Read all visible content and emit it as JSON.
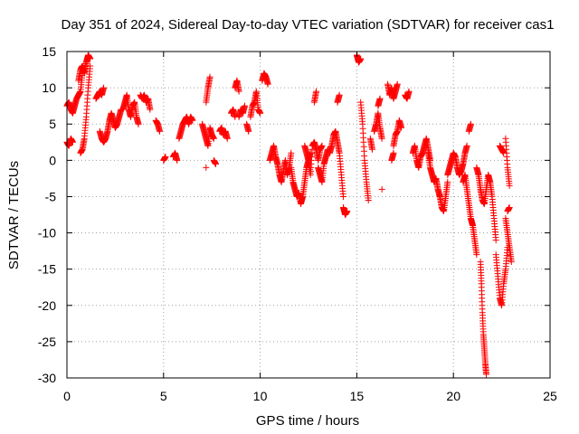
{
  "chart_data": {
    "type": "scatter",
    "title": "Day 351 of 2024, Sidereal Day-to-day VTEC variation (SDTVAR) for receiver cas1",
    "xlabel": "GPS time / hours",
    "ylabel": "SDTVAR / TECUs",
    "xlim": [
      0,
      25
    ],
    "ylim": [
      -30,
      15
    ],
    "xticks": [
      0,
      5,
      10,
      15,
      20,
      25
    ],
    "yticks": [
      -30,
      -25,
      -20,
      -15,
      -10,
      -5,
      0,
      5,
      10,
      15
    ],
    "grid": true,
    "marker": "+",
    "colors": {
      "series": "#ff0000"
    },
    "series": [
      {
        "name": "SDTVAR",
        "segments": [
          {
            "x": [
              0.0,
              0.1,
              0.2,
              0.3,
              0.4,
              0.5,
              0.6,
              0.7,
              0.8
            ],
            "y": [
              7.5,
              8,
              7,
              6.5,
              7.5,
              8.5,
              9,
              9.5,
              12
            ]
          },
          {
            "x": [
              0.0,
              0.1,
              0.2,
              0.3
            ],
            "y": [
              2.5,
              2,
              3,
              2.5
            ]
          },
          {
            "x": [
              0.7,
              0.8,
              0.9,
              1.0,
              1.1,
              1.2
            ],
            "y": [
              1,
              1.5,
              3,
              6,
              10,
              13
            ]
          },
          {
            "x": [
              0.6,
              0.7,
              0.8,
              0.9,
              1.0,
              1.1,
              1.2
            ],
            "y": [
              11,
              12.5,
              13,
              12,
              13.5,
              14.5,
              14
            ]
          },
          {
            "x": [
              1.5,
              1.6,
              1.7,
              1.8,
              1.9
            ],
            "y": [
              8.5,
              9,
              9.5,
              9,
              10
            ]
          },
          {
            "x": [
              1.7,
              1.8,
              1.9,
              2.0,
              2.1,
              2.2,
              2.3,
              2.4,
              2.5,
              2.6,
              2.7,
              2.8
            ],
            "y": [
              4,
              3,
              2.5,
              3,
              4,
              5.5,
              6.5,
              5.5,
              4.5,
              5,
              6,
              7
            ]
          },
          {
            "x": [
              2.9,
              3.0,
              3.1,
              3.2,
              3.3,
              3.4,
              3.5,
              3.6,
              3.7
            ],
            "y": [
              7,
              8,
              9,
              7,
              6,
              7.5,
              8,
              6,
              5
            ]
          },
          {
            "x": [
              3.8,
              3.9,
              4.0,
              4.1,
              4.2,
              4.3
            ],
            "y": [
              9,
              8.5,
              9,
              8,
              8.5,
              7
            ]
          },
          {
            "x": [
              4.6,
              4.7,
              4.8
            ],
            "y": [
              5.5,
              5,
              4
            ]
          },
          {
            "x": [
              5.0,
              5.1
            ],
            "y": [
              0,
              0.5
            ]
          },
          {
            "x": [
              5.5,
              5.6,
              5.7
            ],
            "y": [
              0.5,
              1,
              0
            ]
          },
          {
            "x": [
              5.8,
              5.9,
              6.0,
              6.1,
              6.2,
              6.3,
              6.4,
              6.5
            ],
            "y": [
              3,
              4,
              5,
              5.5,
              6,
              5,
              6,
              5.5
            ]
          },
          {
            "x": [
              7.0,
              7.1,
              7.2,
              7.3,
              7.4,
              7.5,
              7.6
            ],
            "y": [
              5,
              4,
              3,
              2,
              4.5,
              3.5,
              3
            ]
          },
          {
            "x": [
              7.2,
              7.3,
              7.4
            ],
            "y": [
              8,
              10,
              11.5
            ]
          },
          {
            "x": [
              7.2
            ],
            "y": [
              -1
            ]
          },
          {
            "x": [
              7.6,
              7.7
            ],
            "y": [
              0,
              -0.5
            ]
          },
          {
            "x": [
              7.9,
              8.0,
              8.1,
              8.2,
              8.3
            ],
            "y": [
              4,
              4.5,
              3.5,
              4,
              3
            ]
          },
          {
            "x": [
              8.5,
              8.6,
              8.7
            ],
            "y": [
              6.5,
              7,
              6
            ]
          },
          {
            "x": [
              8.7,
              8.8,
              8.9
            ],
            "y": [
              10,
              11,
              9.5
            ]
          },
          {
            "x": [
              8.9,
              9.0,
              9.1,
              9.2
            ],
            "y": [
              6,
              7,
              6.5,
              7.5
            ]
          },
          {
            "x": [
              9.3,
              9.4
            ],
            "y": [
              5,
              4
            ]
          },
          {
            "x": [
              9.5,
              9.6,
              9.7,
              9.8,
              9.9,
              10.0
            ],
            "y": [
              6,
              7.5,
              8,
              9.5,
              7,
              6.5
            ]
          },
          {
            "x": [
              10.1,
              10.2,
              10.3,
              10.4
            ],
            "y": [
              11,
              12,
              11.5,
              10.5
            ]
          },
          {
            "x": [
              10.5,
              10.6,
              10.7,
              10.8,
              10.9,
              11.0,
              11.1,
              11.2,
              11.3,
              11.4,
              11.5,
              11.6
            ],
            "y": [
              0,
              1,
              2,
              0.5,
              -0.5,
              -2,
              -3,
              -1.5,
              0,
              -2,
              -1,
              1
            ]
          },
          {
            "x": [
              11.6,
              11.7,
              11.8,
              11.9,
              12.0,
              12.1,
              12.2,
              12.3,
              12.4,
              12.5,
              12.6
            ],
            "y": [
              -1,
              -3,
              -4,
              -5,
              -4.5,
              -6,
              -5,
              -3,
              -1,
              0,
              1
            ]
          },
          {
            "x": [
              12.3,
              12.4,
              12.5,
              12.6,
              12.7,
              12.8,
              12.9,
              13.0,
              13.1,
              13.2
            ],
            "y": [
              2,
              1,
              0,
              -2,
              2,
              2.5,
              1.5,
              0,
              1.5,
              2
            ]
          },
          {
            "x": [
              12.8,
              12.9
            ],
            "y": [
              8,
              9.5
            ]
          },
          {
            "x": [
              13.0,
              13.1,
              13.2,
              13.3,
              13.4,
              13.5
            ],
            "y": [
              -1,
              -2,
              -3,
              -0.5,
              0.5,
              1.5
            ]
          },
          {
            "x": [
              13.6,
              13.7,
              13.8,
              13.9,
              14.0,
              14.1,
              14.2,
              14.3
            ],
            "y": [
              1,
              2,
              3.5,
              4,
              2.5,
              1,
              -2,
              -5
            ]
          },
          {
            "x": [
              14.3,
              14.4,
              14.5
            ],
            "y": [
              -6.5,
              -7.5,
              -7
            ]
          },
          {
            "x": [
              14.0,
              14.1
            ],
            "y": [
              8,
              9
            ]
          },
          {
            "x": [
              15.0,
              15.1,
              15.2
            ],
            "y": [
              14.5,
              13.5,
              14
            ]
          },
          {
            "x": [
              15.2,
              15.3,
              15.4,
              15.5,
              15.6
            ],
            "y": [
              8,
              5,
              0,
              -3,
              -5.5
            ]
          },
          {
            "x": [
              15.7,
              15.8
            ],
            "y": [
              3,
              1.5
            ]
          },
          {
            "x": [
              15.9,
              16.0,
              16.1,
              16.2,
              16.3
            ],
            "y": [
              4,
              5,
              6.5,
              4.5,
              3
            ]
          },
          {
            "x": [
              16.1,
              16.2
            ],
            "y": [
              7.5,
              8.5
            ]
          },
          {
            "x": [
              16.3
            ],
            "y": [
              -4
            ]
          },
          {
            "x": [
              16.6,
              16.7,
              16.8,
              16.9,
              17.0,
              17.1
            ],
            "y": [
              10.5,
              9,
              10,
              8.5,
              9.5,
              10.5
            ]
          },
          {
            "x": [
              16.9,
              17.0,
              17.1,
              17.2,
              17.3
            ],
            "y": [
              2,
              3.5,
              4,
              5.5,
              4.5
            ]
          },
          {
            "x": [
              16.8,
              16.9
            ],
            "y": [
              0,
              1
            ]
          },
          {
            "x": [
              17.5,
              17.6,
              17.7
            ],
            "y": [
              9,
              8.5,
              9.5
            ]
          },
          {
            "x": [
              17.9,
              18.0,
              18.1,
              18.2,
              18.3,
              18.4,
              18.5,
              18.6,
              18.7,
              18.8
            ],
            "y": [
              1,
              2,
              0,
              -1,
              0.5,
              1,
              2,
              3,
              1.5,
              0
            ]
          },
          {
            "x": [
              18.7,
              18.8,
              18.9,
              19.0,
              19.1,
              19.2,
              19.3,
              19.4,
              19.5,
              19.6,
              19.7
            ],
            "y": [
              1,
              -1,
              -2,
              -3,
              -2.5,
              -4,
              -5,
              -6.5,
              -7,
              -5,
              -3
            ]
          },
          {
            "x": [
              19.7,
              19.8,
              19.9,
              20.0,
              20.1,
              20.2,
              20.3,
              20.4,
              20.5,
              20.6,
              20.7
            ],
            "y": [
              -2,
              -1,
              0,
              1,
              0.5,
              -1,
              -2,
              -1.5,
              -0.5,
              1,
              2
            ]
          },
          {
            "x": [
              20.5,
              20.6,
              20.7,
              20.8,
              20.9,
              21.0,
              21.1,
              21.2
            ],
            "y": [
              -3,
              -2,
              -4,
              -6,
              -8,
              -9,
              -11,
              -13
            ]
          },
          {
            "x": [
              20.8,
              20.9
            ],
            "y": [
              4,
              5
            ]
          },
          {
            "x": [
              21.2,
              21.3,
              21.4,
              21.5,
              21.6,
              21.7,
              21.8,
              21.9,
              22.0,
              22.1,
              22.2
            ],
            "y": [
              -1,
              -2,
              -4,
              -5.5,
              -6,
              -4,
              -2,
              -3,
              -5,
              -8,
              -11
            ]
          },
          {
            "x": [
              21.4,
              21.45,
              21.5,
              21.55,
              21.6,
              21.65,
              21.7
            ],
            "y": [
              -14,
              -17,
              -21,
              -24,
              -26,
              -28,
              -29.5
            ]
          },
          {
            "x": [
              22.2,
              22.3,
              22.4,
              22.5,
              22.6,
              22.7,
              22.8
            ],
            "y": [
              -13,
              -16,
              -19,
              -20,
              -17,
              -15,
              -12
            ]
          },
          {
            "x": [
              22.4,
              22.5,
              22.6
            ],
            "y": [
              2,
              1.5,
              1
            ]
          },
          {
            "x": [
              22.7,
              22.8,
              22.9
            ],
            "y": [
              3,
              -1,
              -3.5
            ]
          },
          {
            "x": [
              22.7,
              22.8,
              22.9,
              23.0
            ],
            "y": [
              -8,
              -10,
              -12,
              -14
            ]
          },
          {
            "x": [
              22.8,
              22.9
            ],
            "y": [
              -7,
              -6.5
            ]
          }
        ]
      }
    ]
  }
}
